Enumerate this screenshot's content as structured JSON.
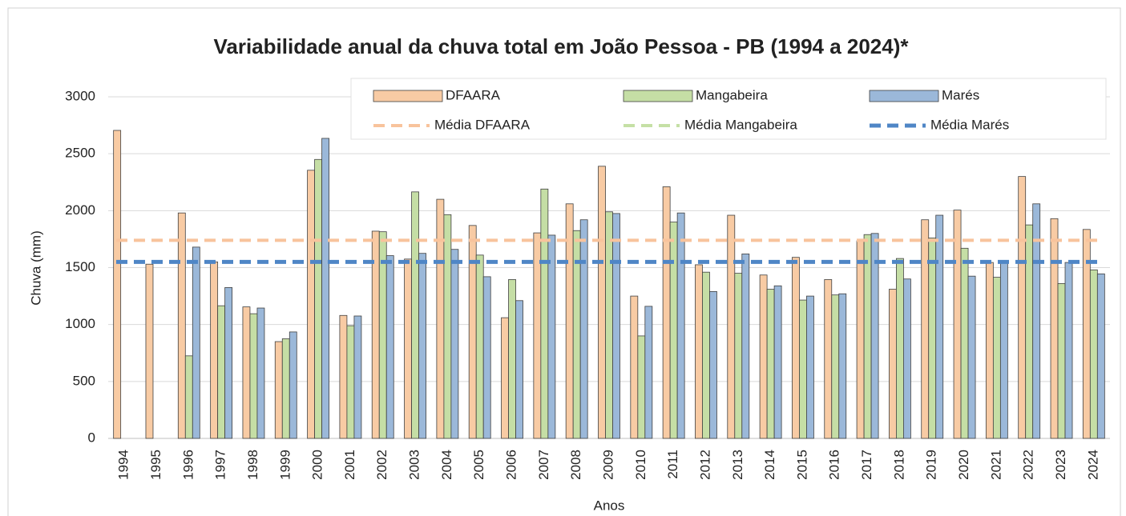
{
  "chart_data": {
    "type": "bar",
    "title": "Variabilidade anual da chuva total em João Pessoa - PB (1994 a 2024)*",
    "x_label": "Anos",
    "y_label": "Chuva (mm)",
    "categories": [
      "1994",
      "1995",
      "1996",
      "1997",
      "1998",
      "1999",
      "2000",
      "2001",
      "2002",
      "2003",
      "2004",
      "2005",
      "2006",
      "2007",
      "2008",
      "2009",
      "2010",
      "2011",
      "2012",
      "2013",
      "2014",
      "2015",
      "2016",
      "2017",
      "2018",
      "2019",
      "2020",
      "2021",
      "2022",
      "2023",
      "2024"
    ],
    "series": [
      {
        "name": "DFAARA",
        "color": "#f8cba4",
        "values": [
          2705,
          1530,
          1980,
          1550,
          1155,
          850,
          2355,
          1080,
          1820,
          1575,
          2100,
          1870,
          1060,
          1805,
          2060,
          2390,
          1250,
          2210,
          1525,
          1960,
          1435,
          1590,
          1395,
          1735,
          1310,
          1920,
          2005,
          1545,
          2300,
          1930,
          1835
        ]
      },
      {
        "name": "Mangabeira",
        "color": "#c5dea5",
        "values": [
          null,
          null,
          725,
          1165,
          1095,
          875,
          2450,
          990,
          1815,
          2165,
          1965,
          1610,
          1395,
          2190,
          1825,
          1990,
          900,
          1900,
          1460,
          1450,
          1310,
          1215,
          1260,
          1790,
          1580,
          1760,
          1670,
          1415,
          1875,
          1360,
          1480
        ]
      },
      {
        "name": "Marés",
        "color": "#9bb8d9",
        "values": [
          null,
          null,
          1680,
          1325,
          1145,
          935,
          2635,
          1075,
          1605,
          1625,
          1660,
          1420,
          1210,
          1785,
          1920,
          1975,
          1160,
          1980,
          1290,
          1620,
          1340,
          1250,
          1270,
          1800,
          1400,
          1960,
          1425,
          1550,
          2060,
          1545,
          1445
        ]
      }
    ],
    "mean_lines": [
      {
        "name": "Média DFAARA",
        "color": "#f8c39c",
        "value": 1740
      },
      {
        "name": "Média Mangabeira",
        "color": "#c5e0a5",
        "value": 1550
      },
      {
        "name": "Média Marés",
        "color": "#4f86c6",
        "value": 1550
      }
    ],
    "ylim": [
      0,
      3000
    ],
    "yticks": [
      0,
      500,
      1000,
      1500,
      2000,
      2500,
      3000
    ],
    "grid": true
  }
}
